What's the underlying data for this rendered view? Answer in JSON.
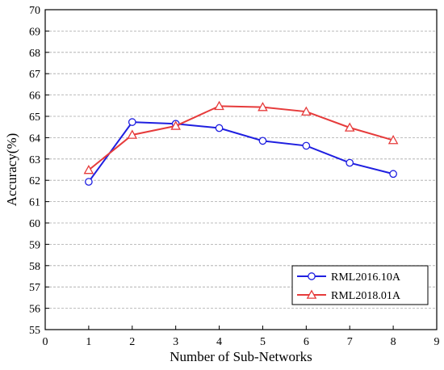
{
  "chart_data": {
    "type": "line",
    "xlabel": "Number of Sub-Networks",
    "ylabel": "Accuracy(%)",
    "xlim": [
      0,
      9
    ],
    "ylim": [
      55,
      70
    ],
    "xticks": [
      0,
      1,
      2,
      3,
      4,
      5,
      6,
      7,
      8,
      9
    ],
    "yticks": [
      55,
      56,
      57,
      58,
      59,
      60,
      61,
      62,
      63,
      64,
      65,
      66,
      67,
      68,
      69,
      70
    ],
    "grid": "horizontal-dashed",
    "legend_position": "bottom-right",
    "x": [
      1,
      2,
      3,
      4,
      5,
      6,
      7,
      8
    ],
    "series": [
      {
        "name": "RML2016.10A",
        "color": "#1f1fe0",
        "marker": "circle",
        "values": [
          61.93,
          64.73,
          64.65,
          64.45,
          63.85,
          63.62,
          62.82,
          62.3
        ]
      },
      {
        "name": "RML2018.01A",
        "color": "#e63b3b",
        "marker": "triangle",
        "values": [
          62.48,
          64.13,
          64.55,
          65.48,
          65.43,
          65.22,
          64.47,
          63.88
        ]
      }
    ]
  }
}
